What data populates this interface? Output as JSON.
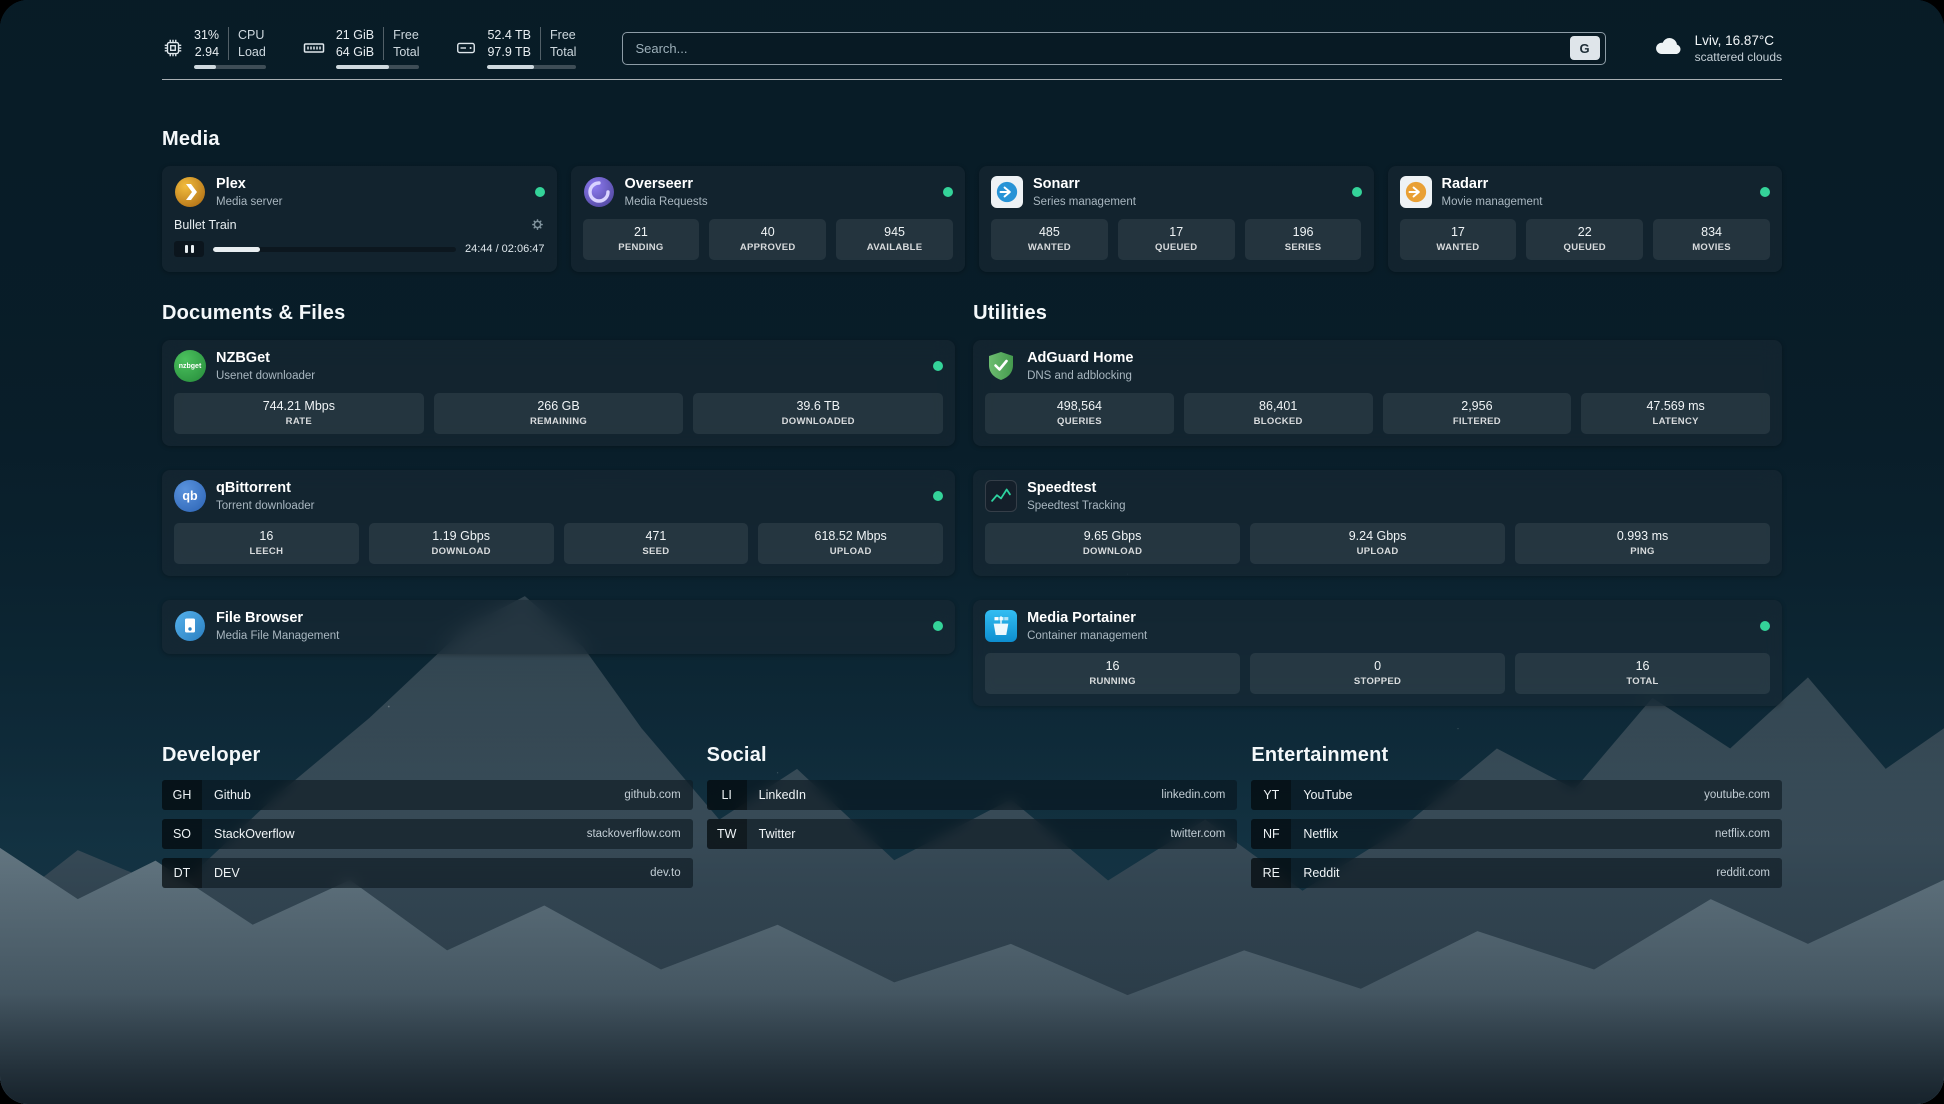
{
  "header": {
    "cpu": {
      "percent": "31%",
      "load": "2.94",
      "label_percent": "CPU",
      "label_load": "Load",
      "progress": 31
    },
    "memory": {
      "free": "21 GiB",
      "total": "64 GiB",
      "label_free": "Free",
      "label_total": "Total",
      "progress": 63
    },
    "disk": {
      "free": "52.4 TB",
      "total": "97.9 TB",
      "label_free": "Free",
      "label_total": "Total",
      "progress": 52
    },
    "search": {
      "placeholder": "Search...",
      "button_label": "G"
    },
    "weather": {
      "location": "Lviv, 16.87°C",
      "condition": "scattered clouds"
    }
  },
  "sections": {
    "media": {
      "title": "Media",
      "plex": {
        "name": "Plex",
        "subtitle": "Media server",
        "now_playing": "Bullet Train",
        "time": "24:44 / 02:06:47",
        "progress_percent": 19.5
      },
      "overseerr": {
        "name": "Overseerr",
        "subtitle": "Media Requests",
        "stats": [
          {
            "value": "21",
            "label": "PENDING"
          },
          {
            "value": "40",
            "label": "APPROVED"
          },
          {
            "value": "945",
            "label": "AVAILABLE"
          }
        ]
      },
      "sonarr": {
        "name": "Sonarr",
        "subtitle": "Series management",
        "stats": [
          {
            "value": "485",
            "label": "WANTED"
          },
          {
            "value": "17",
            "label": "QUEUED"
          },
          {
            "value": "196",
            "label": "SERIES"
          }
        ]
      },
      "radarr": {
        "name": "Radarr",
        "subtitle": "Movie management",
        "stats": [
          {
            "value": "17",
            "label": "WANTED"
          },
          {
            "value": "22",
            "label": "QUEUED"
          },
          {
            "value": "834",
            "label": "MOVIES"
          }
        ]
      }
    },
    "documents": {
      "title": "Documents & Files",
      "nzbget": {
        "name": "NZBGet",
        "subtitle": "Usenet downloader",
        "icon_text": "nzbget",
        "stats": [
          {
            "value": "744.21 Mbps",
            "label": "RATE"
          },
          {
            "value": "266 GB",
            "label": "REMAINING"
          },
          {
            "value": "39.6 TB",
            "label": "DOWNLOADED"
          }
        ]
      },
      "qbittorrent": {
        "name": "qBittorrent",
        "subtitle": "Torrent downloader",
        "icon_text": "qb",
        "stats": [
          {
            "value": "16",
            "label": "LEECH"
          },
          {
            "value": "1.19 Gbps",
            "label": "DOWNLOAD"
          },
          {
            "value": "471",
            "label": "SEED"
          },
          {
            "value": "618.52 Mbps",
            "label": "UPLOAD"
          }
        ]
      },
      "filebrowser": {
        "name": "File Browser",
        "subtitle": "Media File Management"
      }
    },
    "utilities": {
      "title": "Utilities",
      "adguard": {
        "name": "AdGuard Home",
        "subtitle": "DNS and adblocking",
        "stats": [
          {
            "value": "498,564",
            "label": "QUERIES"
          },
          {
            "value": "86,401",
            "label": "BLOCKED"
          },
          {
            "value": "2,956",
            "label": "FILTERED"
          },
          {
            "value": "47.569 ms",
            "label": "LATENCY"
          }
        ]
      },
      "speedtest": {
        "name": "Speedtest",
        "subtitle": "Speedtest Tracking",
        "stats": [
          {
            "value": "9.65 Gbps",
            "label": "DOWNLOAD"
          },
          {
            "value": "9.24 Gbps",
            "label": "UPLOAD"
          },
          {
            "value": "0.993 ms",
            "label": "PING"
          }
        ]
      },
      "portainer": {
        "name": "Media Portainer",
        "subtitle": "Container management",
        "stats": [
          {
            "value": "16",
            "label": "RUNNING"
          },
          {
            "value": "0",
            "label": "STOPPED"
          },
          {
            "value": "16",
            "label": "TOTAL"
          }
        ]
      }
    },
    "bookmarks": [
      {
        "title": "Developer",
        "items": [
          {
            "abbr": "GH",
            "name": "Github",
            "url": "github.com"
          },
          {
            "abbr": "SO",
            "name": "StackOverflow",
            "url": "stackoverflow.com"
          },
          {
            "abbr": "DT",
            "name": "DEV",
            "url": "dev.to"
          }
        ]
      },
      {
        "title": "Social",
        "items": [
          {
            "abbr": "LI",
            "name": "LinkedIn",
            "url": "linkedin.com"
          },
          {
            "abbr": "TW",
            "name": "Twitter",
            "url": "twitter.com"
          }
        ]
      },
      {
        "title": "Entertainment",
        "items": [
          {
            "abbr": "YT",
            "name": "YouTube",
            "url": "youtube.com"
          },
          {
            "abbr": "NF",
            "name": "Netflix",
            "url": "netflix.com"
          },
          {
            "abbr": "RE",
            "name": "Reddit",
            "url": "reddit.com"
          }
        ]
      }
    ]
  },
  "colors": {
    "status_online": "#34d399"
  }
}
